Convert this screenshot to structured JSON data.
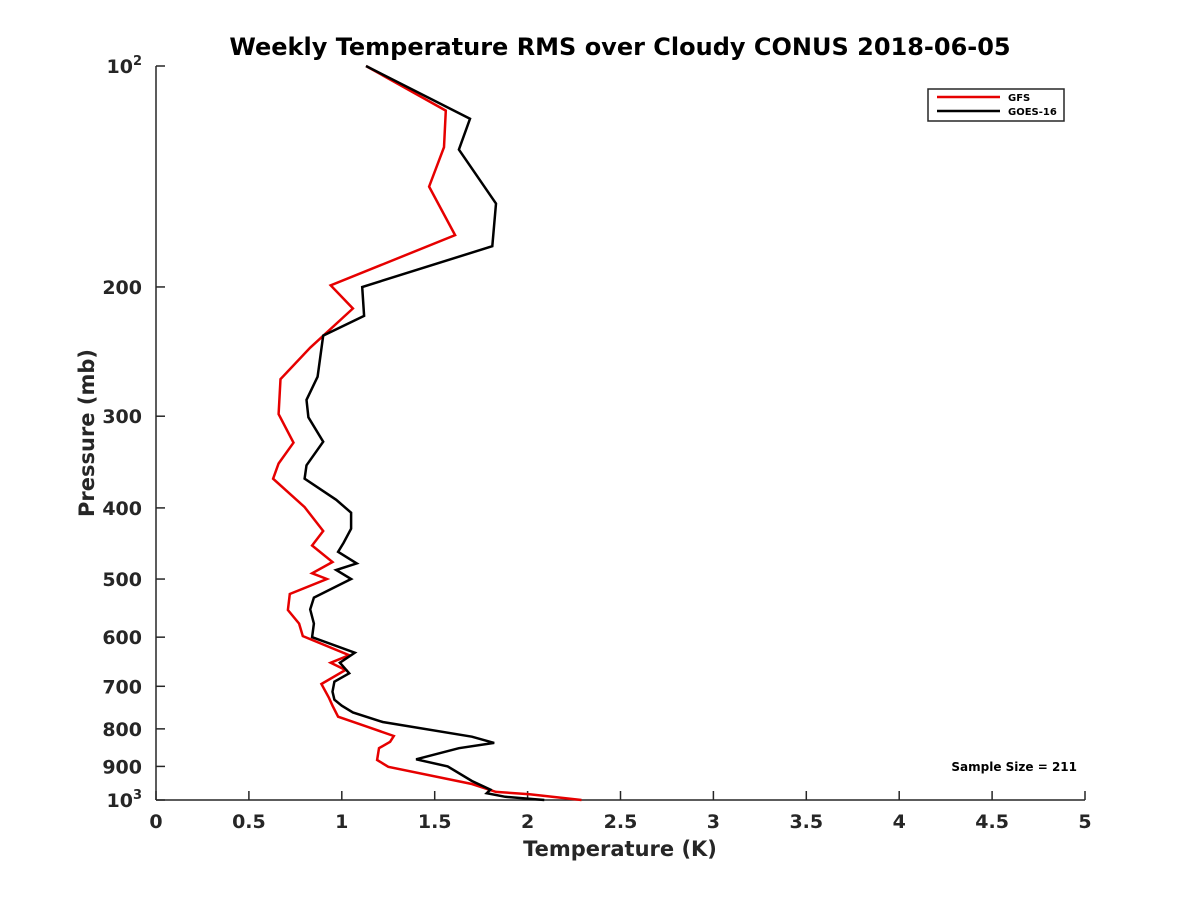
{
  "chart_data": {
    "type": "line",
    "title": "Weekly Temperature RMS over Cloudy CONUS 2018-06-05",
    "xlabel": "Temperature (K)",
    "ylabel": "Pressure (mb)",
    "xlim": [
      0,
      5
    ],
    "ylim": [
      100,
      1000
    ],
    "yscale": "log",
    "y_reversed": true,
    "grid": false,
    "xticks": [
      0,
      0.5,
      1,
      1.5,
      2,
      2.5,
      3,
      3.5,
      4,
      4.5,
      5
    ],
    "xtick_labels": [
      "0",
      "0.5",
      "1",
      "1.5",
      "2",
      "2.5",
      "3",
      "3.5",
      "4",
      "4.5",
      "5"
    ],
    "yticks": [
      {
        "value": 100,
        "base": "10",
        "exp": "2",
        "label": ""
      },
      {
        "value": 200,
        "label": "200"
      },
      {
        "value": 300,
        "label": "300"
      },
      {
        "value": 400,
        "label": "400"
      },
      {
        "value": 500,
        "label": "500"
      },
      {
        "value": 600,
        "label": "600"
      },
      {
        "value": 700,
        "label": "700"
      },
      {
        "value": 800,
        "label": "800"
      },
      {
        "value": 900,
        "label": "900"
      },
      {
        "value": 1000,
        "base": "10",
        "exp": "3",
        "label": ""
      }
    ],
    "legend_position": "top-right",
    "annotation": "Sample Size = 211",
    "series": [
      {
        "name": "GFS",
        "color": "#e60000",
        "points": [
          [
            1.13,
            100
          ],
          [
            1.56,
            115
          ],
          [
            1.55,
            129
          ],
          [
            1.47,
            146
          ],
          [
            1.61,
            170
          ],
          [
            0.94,
            199
          ],
          [
            1.06,
            214
          ],
          [
            0.83,
            242
          ],
          [
            0.67,
            267
          ],
          [
            0.66,
            298
          ],
          [
            0.74,
            326
          ],
          [
            0.66,
            348
          ],
          [
            0.63,
            365
          ],
          [
            0.8,
            399
          ],
          [
            0.9,
            430
          ],
          [
            0.84,
            450
          ],
          [
            0.95,
            474
          ],
          [
            0.84,
            491
          ],
          [
            0.92,
            500
          ],
          [
            0.72,
            524
          ],
          [
            0.71,
            551
          ],
          [
            0.77,
            575
          ],
          [
            0.79,
            598
          ],
          [
            1.04,
            635
          ],
          [
            0.94,
            650
          ],
          [
            1.02,
            665
          ],
          [
            0.89,
            695
          ],
          [
            0.93,
            725
          ],
          [
            0.95,
            744
          ],
          [
            0.98,
            770
          ],
          [
            1.14,
            795
          ],
          [
            1.28,
            818
          ],
          [
            1.26,
            833
          ],
          [
            1.2,
            850
          ],
          [
            1.19,
            882
          ],
          [
            1.25,
            901
          ],
          [
            1.7,
            951
          ],
          [
            1.83,
            975
          ],
          [
            2.01,
            982
          ],
          [
            2.29,
            1000
          ]
        ]
      },
      {
        "name": "GOES-16",
        "color": "#000000",
        "points": [
          [
            1.13,
            100
          ],
          [
            1.69,
            118
          ],
          [
            1.63,
            130
          ],
          [
            1.83,
            154
          ],
          [
            1.81,
            176
          ],
          [
            1.11,
            200
          ],
          [
            1.12,
            219
          ],
          [
            0.9,
            233
          ],
          [
            0.87,
            265
          ],
          [
            0.81,
            285
          ],
          [
            0.82,
            301
          ],
          [
            0.9,
            325
          ],
          [
            0.81,
            350
          ],
          [
            0.8,
            365
          ],
          [
            0.97,
            390
          ],
          [
            1.05,
            406
          ],
          [
            1.05,
            427
          ],
          [
            1.01,
            446
          ],
          [
            0.98,
            459
          ],
          [
            1.08,
            476
          ],
          [
            0.97,
            486
          ],
          [
            1.05,
            500
          ],
          [
            0.85,
            530
          ],
          [
            0.83,
            550
          ],
          [
            0.85,
            575
          ],
          [
            0.84,
            600
          ],
          [
            1.07,
            630
          ],
          [
            0.99,
            650
          ],
          [
            1.04,
            672
          ],
          [
            0.96,
            690
          ],
          [
            0.95,
            712
          ],
          [
            0.96,
            730
          ],
          [
            1.0,
            744
          ],
          [
            1.06,
            760
          ],
          [
            1.22,
            783
          ],
          [
            1.7,
            820
          ],
          [
            1.82,
            836
          ],
          [
            1.63,
            850
          ],
          [
            1.4,
            880
          ],
          [
            1.57,
            900
          ],
          [
            1.7,
            942
          ],
          [
            1.8,
            968
          ],
          [
            1.78,
            979
          ],
          [
            1.88,
            990
          ],
          [
            2.09,
            1000
          ]
        ]
      }
    ]
  }
}
